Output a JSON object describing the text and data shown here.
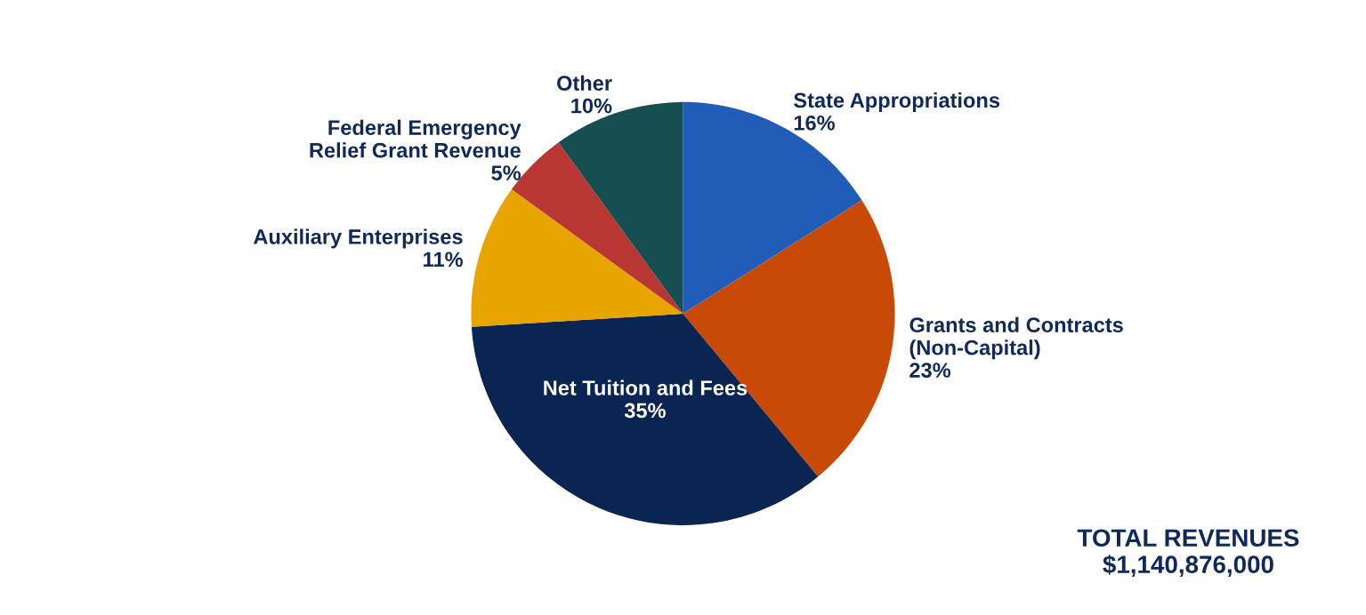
{
  "chart_data": {
    "type": "pie",
    "categories": [
      "State Appropriations",
      "Grants and Contracts\n(Non-Capital)",
      "Net Tuition and Fees",
      "Auxiliary Enterprises",
      "Federal Emergency\nRelief Grant Revenue",
      "Other"
    ],
    "values": [
      16,
      23,
      35,
      11,
      5,
      10
    ],
    "value_labels": [
      "16%",
      "23%",
      "35%",
      "11%",
      "5%",
      "10%"
    ],
    "colors": [
      "#215cb8",
      "#c94a06",
      "#0a2552",
      "#e8a500",
      "#b83733",
      "#164f52"
    ],
    "annotations": [
      "TOTAL REVENUES\n$1,140,876,000"
    ],
    "legend": false
  }
}
